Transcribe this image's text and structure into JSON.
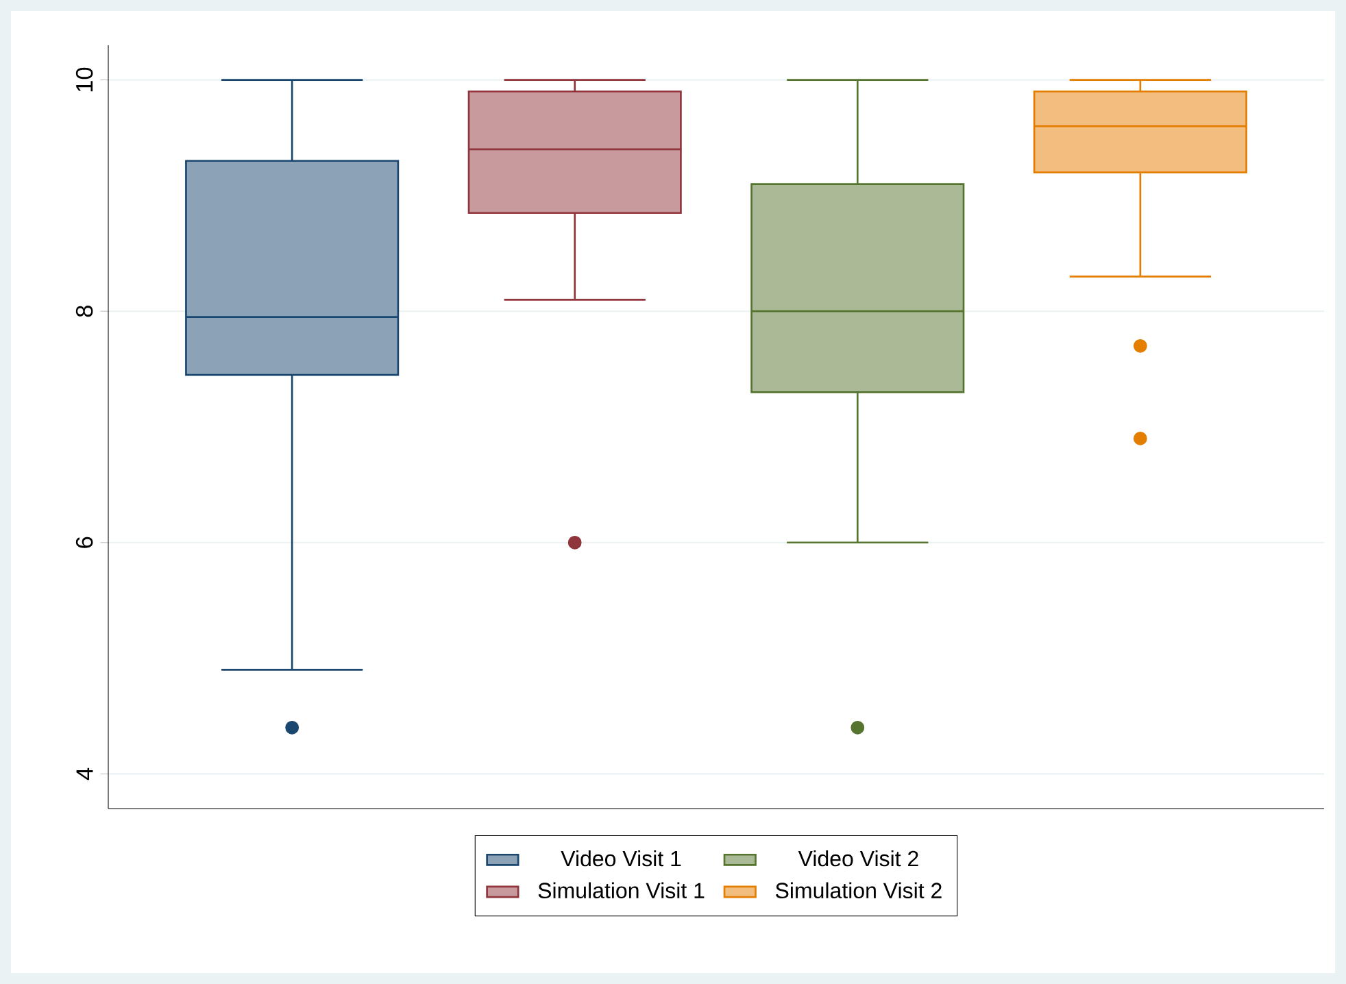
{
  "chart_data": {
    "type": "box",
    "categories": [
      null
    ],
    "series": [
      {
        "name": "Video Visit 1",
        "color": "#1a476f",
        "boxes": [
          {
            "low": 4.9,
            "q1": 7.45,
            "median": 7.95,
            "q3": 9.3,
            "high": 10,
            "outliers": [
              4.4
            ]
          }
        ]
      },
      {
        "name": "Simulation Visit 1",
        "color": "#90353b",
        "boxes": [
          {
            "low": 8.1,
            "q1": 8.85,
            "median": 9.4,
            "q3": 9.9,
            "high": 10,
            "outliers": [
              6.0
            ]
          }
        ]
      },
      {
        "name": "Video Visit 2",
        "color": "#55752f",
        "boxes": [
          {
            "low": 6.0,
            "q1": 7.3,
            "median": 8.0,
            "q3": 9.1,
            "high": 10,
            "outliers": [
              4.4
            ]
          }
        ]
      },
      {
        "name": "Simulation Visit 2",
        "color": "#e37e00",
        "boxes": [
          {
            "low": 8.3,
            "q1": 9.2,
            "median": 9.6,
            "q3": 9.9,
            "high": 10,
            "outliers": [
              7.7,
              6.9
            ]
          }
        ]
      }
    ],
    "ylim": [
      3.7,
      10.3
    ],
    "yticks": [
      4,
      6,
      8,
      10
    ],
    "grid": "y",
    "legend": "bottom",
    "tick_labels": "y"
  }
}
